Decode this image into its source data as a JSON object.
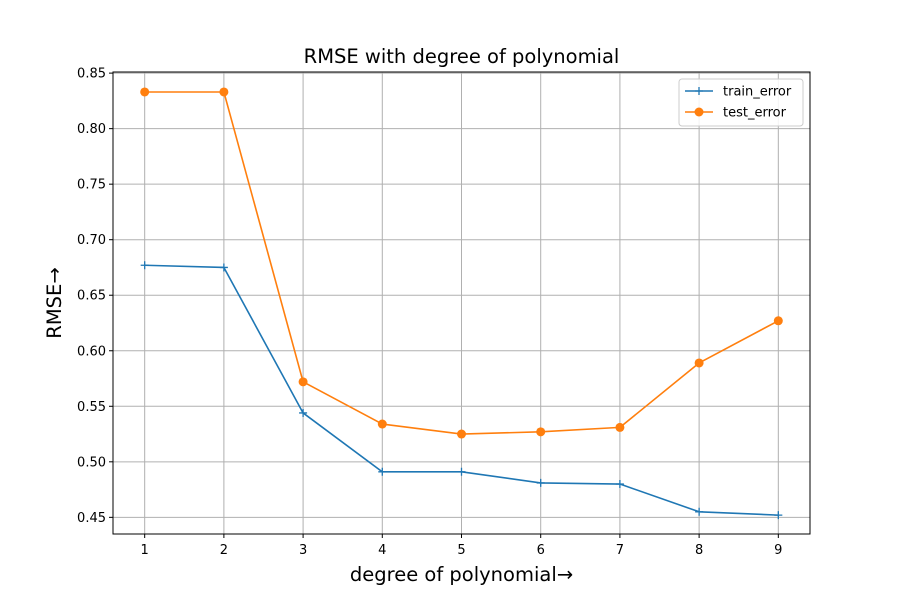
{
  "chart_data": {
    "type": "line",
    "title": "RMSE with degree of polynomial",
    "xlabel": "degree of polynomial→",
    "ylabel": "RMSE→",
    "x": [
      1,
      2,
      3,
      4,
      5,
      6,
      7,
      8,
      9
    ],
    "xticks": [
      "1",
      "2",
      "3",
      "4",
      "5",
      "6",
      "7",
      "8",
      "9"
    ],
    "yticks": [
      "0.45",
      "0.50",
      "0.55",
      "0.60",
      "0.65",
      "0.70",
      "0.75",
      "0.80",
      "0.85"
    ],
    "xlim": [
      0.6,
      9.4
    ],
    "ylim": [
      0.435,
      0.851
    ],
    "grid": true,
    "legend_position": "top-right",
    "series": [
      {
        "name": "train_error",
        "color": "#1f77b4",
        "marker": "plus",
        "values": [
          0.677,
          0.675,
          0.544,
          0.491,
          0.491,
          0.481,
          0.48,
          0.455,
          0.452
        ]
      },
      {
        "name": "test_error",
        "color": "#ff7f0e",
        "marker": "circle",
        "values": [
          0.833,
          0.833,
          0.572,
          0.534,
          0.525,
          0.527,
          0.531,
          0.589,
          0.627
        ]
      }
    ]
  }
}
